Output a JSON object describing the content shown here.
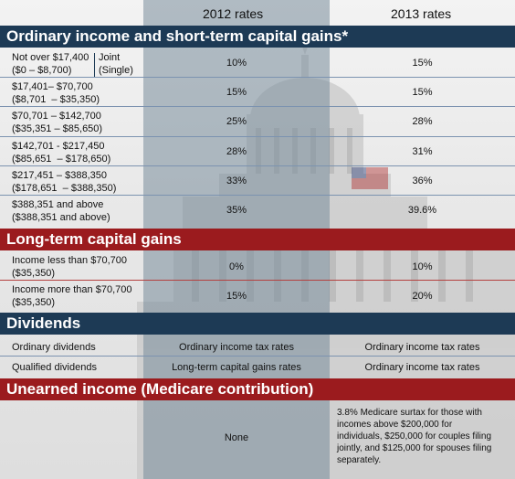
{
  "header": {
    "col_2012": "2012 rates",
    "col_2013": "2013 rates"
  },
  "sections": {
    "ordinary": "Ordinary income and short-term capital gains*",
    "longterm": "Long-term capital gains",
    "dividends": "Dividends",
    "unearned": "Unearned income (Medicare contribution)"
  },
  "ordinary_rows": [
    {
      "joint": "Not over $17,400",
      "single": "($0 – $8,700)",
      "tag1": "Joint",
      "tag2": "(Single)",
      "r2012": "10%",
      "r2013": "15%"
    },
    {
      "joint": "$17,401– $70,700",
      "single": "($8,701  – $35,350)",
      "r2012": "15%",
      "r2013": "15%"
    },
    {
      "joint": "$70,701 – $142,700",
      "single": "($35,351 – $85,650)",
      "r2012": "25%",
      "r2013": "28%"
    },
    {
      "joint": "$142,701 - $217,450",
      "single": "($85,651  – $178,650)",
      "r2012": "28%",
      "r2013": "31%"
    },
    {
      "joint": "$217,451 – $388,350",
      "single": "($178,651  – $388,350)",
      "r2012": "33%",
      "r2013": "36%"
    },
    {
      "joint": "$388,351 and above",
      "single": "($388,351 and above)",
      "r2012": "35%",
      "r2013": "39.6%"
    }
  ],
  "longterm_rows": [
    {
      "line1": "Income less than $70,700",
      "line2": "($35,350)",
      "r2012": "0%",
      "r2013": "10%"
    },
    {
      "line1": "Income more than $70,700",
      "line2": "($35,350)",
      "r2012": "15%",
      "r2013": "20%"
    }
  ],
  "dividend_rows": [
    {
      "label": "Ordinary dividends",
      "r2012": "Ordinary income tax rates",
      "r2013": "Ordinary income tax rates"
    },
    {
      "label": "Qualified dividends",
      "r2012": "Long-term capital gains rates",
      "r2013": "Ordinary income tax rates"
    }
  ],
  "unearned_row": {
    "r2012": "None",
    "r2013_lines": [
      "3.8% Medicare surtax for those with",
      "incomes above $200,000 for",
      "individuals, $250,000 for couples filing",
      "jointly, and $125,000 for spouses filing",
      "separately."
    ]
  },
  "colors": {
    "navy": "#1d3a55",
    "red": "#9b1b1e",
    "band": "#788c9b"
  }
}
